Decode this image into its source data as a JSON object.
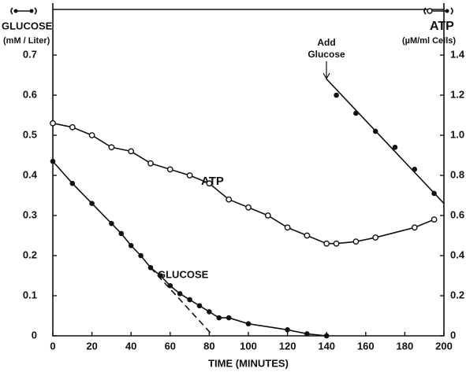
{
  "chart_data": {
    "type": "line",
    "y_label": "GLUCOSE",
    "y_unit": "(mM / Liter)",
    "y2_label": "ATP",
    "y2_unit": "(µM/ml Cells)",
    "x_label": "TIME (MINUTES)",
    "annotations": [
      "ATP",
      "GLUCOSE",
      "Add",
      "Glucose"
    ],
    "xlim": [
      0,
      200
    ],
    "xticks": [
      0,
      20,
      40,
      60,
      80,
      100,
      120,
      140,
      160,
      180,
      200
    ],
    "ylim": [
      0,
      0.7
    ],
    "yticks": [
      0,
      0.1,
      0.2,
      0.3,
      0.4,
      0.5,
      0.6,
      0.7
    ],
    "y2lim": [
      0,
      1.4
    ],
    "y2ticks": [
      0,
      0.2,
      0.4,
      0.6,
      0.8,
      {
        "value": 1,
        "label": "1.0"
      },
      1.2,
      1.4
    ],
    "color": "#111111",
    "series": [
      {
        "axis": "y",
        "markers": true,
        "x": [
          0,
          10,
          20,
          30,
          35,
          40,
          45,
          50,
          55,
          60,
          65,
          70,
          75,
          80,
          85,
          90,
          100,
          120,
          130,
          140
        ],
        "values": [
          0.435,
          0.38,
          0.33,
          0.28,
          0.255,
          0.225,
          0.2,
          0.17,
          0.15,
          0.125,
          0.105,
          0.09,
          0.075,
          0.06,
          0.045,
          0.045,
          0.03,
          0.015,
          0.005,
          0
        ]
      },
      {
        "axis": "y2",
        "markers": true,
        "x": [
          0,
          10,
          20,
          30,
          40,
          50,
          60,
          70,
          80,
          90,
          100,
          110,
          120,
          130,
          140,
          145,
          155,
          165,
          185,
          195
        ],
        "values": [
          1.06,
          1.04,
          1.0,
          0.94,
          0.92,
          0.86,
          0.83,
          0.8,
          0.76,
          0.68,
          0.64,
          0.6,
          0.54,
          0.5,
          0.46,
          0.46,
          0.47,
          0.49,
          0.54,
          0.58
        ]
      },
      {
        "axis": "y",
        "markers": true,
        "line": false,
        "x": [
          145,
          155,
          165,
          175,
          185,
          195
        ],
        "values": [
          0.6,
          0.555,
          0.51,
          0.47,
          0.415,
          0.355
        ]
      },
      {
        "axis": "y",
        "markers": false,
        "x": [
          140,
          200
        ],
        "values": [
          0.64,
          0.33
        ]
      },
      {
        "axis": "y",
        "markers": false,
        "dashed": true,
        "x": [
          50,
          82
        ],
        "values": [
          0.17,
          0
        ]
      }
    ]
  }
}
